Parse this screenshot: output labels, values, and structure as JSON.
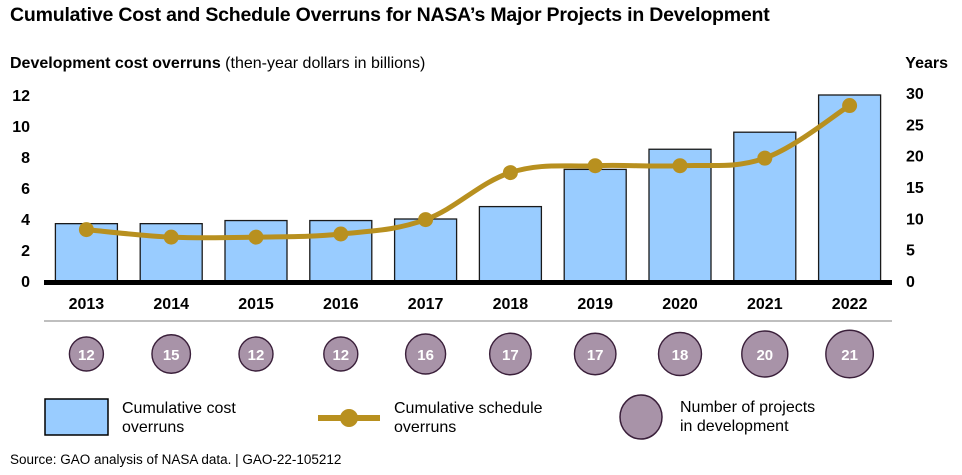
{
  "title": "Cumulative Cost and Schedule Overruns for NASA’s Major Projects in Development",
  "source": "Source: GAO analysis of NASA data.  |  GAO-22-105212",
  "chart_data": {
    "type": "bar",
    "title": "Cumulative Cost and Schedule Overruns for NASA’s Major Projects in Development",
    "ylabel_bold": "Development cost overruns",
    "ylabel_rest": " (then-year dollars in billions)",
    "y2label": "Years",
    "categories": [
      "2013",
      "2014",
      "2015",
      "2016",
      "2017",
      "2018",
      "2019",
      "2020",
      "2021",
      "2022"
    ],
    "ylim": [
      0,
      12
    ],
    "y_ticks": [
      "0",
      "2",
      "4",
      "6",
      "8",
      "10",
      "12"
    ],
    "y2lim": [
      0,
      30
    ],
    "y2_ticks": [
      "0",
      "5",
      "10",
      "15",
      "20",
      "25",
      "30"
    ],
    "grid": false,
    "legend_position": "bottom",
    "series": [
      {
        "name": "Cumulative cost overruns",
        "type": "bar",
        "axis": "left",
        "color": "#99ccff",
        "values": [
          3.7,
          3.7,
          3.9,
          3.9,
          4.0,
          4.8,
          7.2,
          8.5,
          9.6,
          12.0
        ]
      },
      {
        "name": "Cumulative schedule overruns",
        "type": "line",
        "axis": "right",
        "color": "#b8901f",
        "values": [
          8.2,
          7.0,
          7.0,
          7.5,
          9.8,
          17.3,
          18.4,
          18.4,
          19.6,
          28.0
        ]
      },
      {
        "name": "Number of projects in development",
        "type": "bubble",
        "color": "#a893a8",
        "values": [
          12,
          15,
          12,
          12,
          16,
          17,
          17,
          18,
          20,
          21
        ]
      }
    ]
  },
  "legend": [
    {
      "line1": "Cumulative cost",
      "line2": "overruns"
    },
    {
      "line1": "Cumulative schedule",
      "line2": "overruns"
    },
    {
      "line1": "Number of projects",
      "line2": "in development"
    }
  ]
}
